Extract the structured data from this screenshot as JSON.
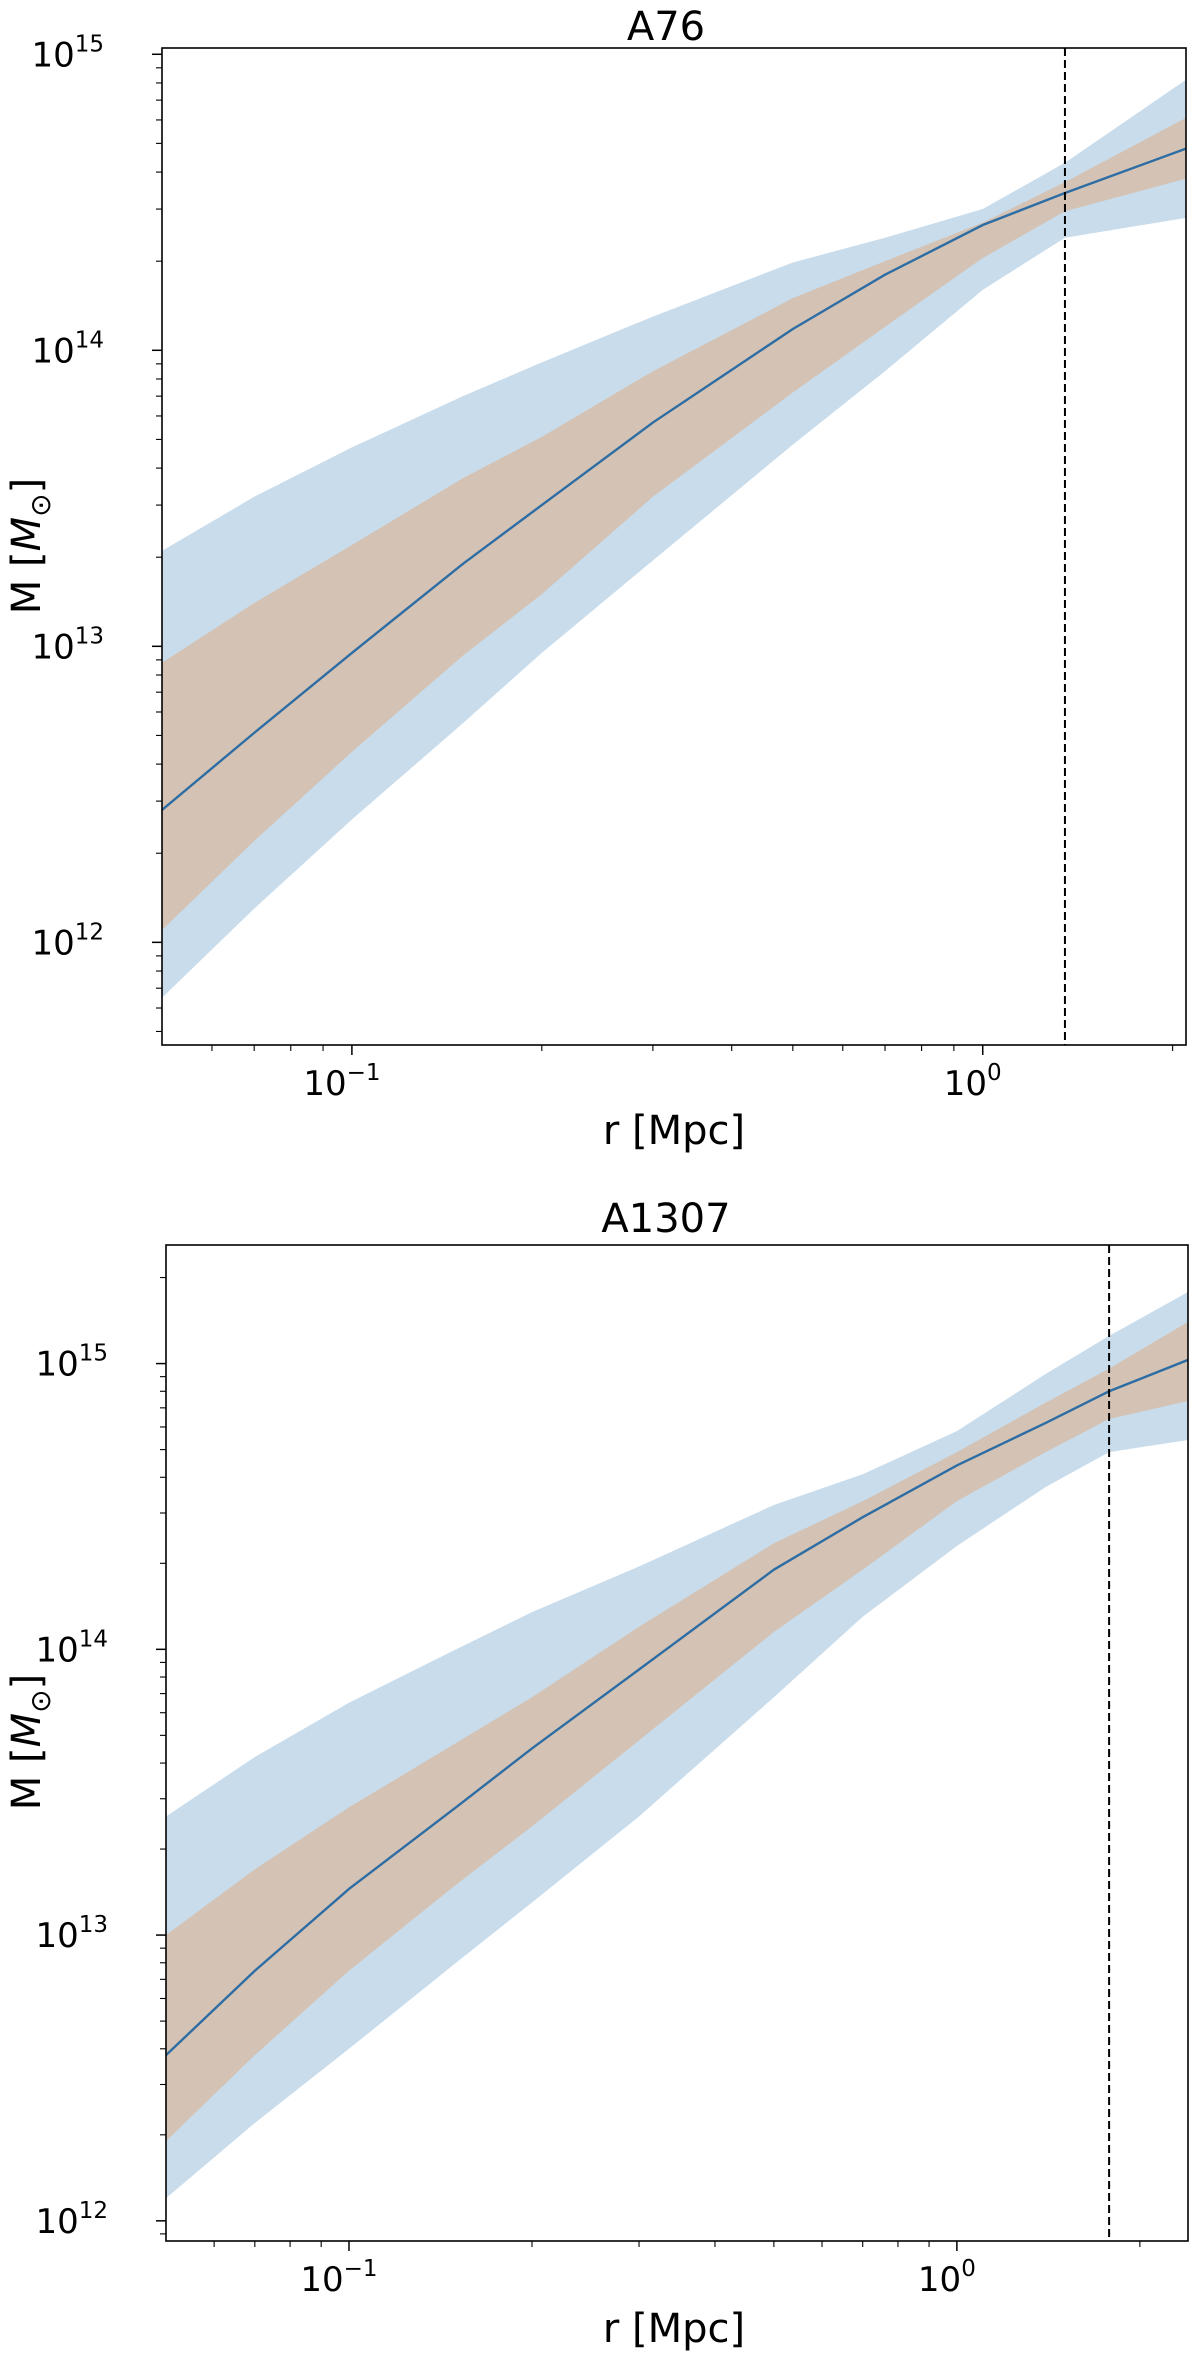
{
  "chart_data": [
    {
      "type": "line",
      "title": "A76",
      "xlabel": "r [Mpc]",
      "ylabel_main": "M [",
      "ylabel_symbol": "M",
      "ylabel_sub": "⊙",
      "ylabel_end": "]",
      "xscale": "log",
      "yscale": "log",
      "xlim": [
        0.05,
        2.1
      ],
      "ylim": [
        450000000000.0,
        1050000000000000.0
      ],
      "xticks": [
        {
          "value": 0.1,
          "label": "10",
          "exp": "−1"
        },
        {
          "value": 1.0,
          "label": "10",
          "exp": "0"
        }
      ],
      "yticks": [
        {
          "value": 1000000000000.0,
          "label": "10",
          "exp": "12"
        },
        {
          "value": 10000000000000.0,
          "label": "10",
          "exp": "13"
        },
        {
          "value": 100000000000000.0,
          "label": "10",
          "exp": "14"
        },
        {
          "value": 1000000000000000.0,
          "label": "10",
          "exp": "15"
        }
      ],
      "vline_x": 1.35,
      "series": [
        {
          "x": [
            0.05,
            0.07,
            0.1,
            0.15,
            0.2,
            0.3,
            0.5,
            0.7,
            1.0,
            1.35,
            2.1
          ],
          "y": [
            2800000000000.0,
            5100000000000.0,
            9500000000000.0,
            19000000000000.0,
            30000000000000.0,
            57000000000000.0,
            118000000000000.0,
            180000000000000.0,
            265000000000000.0,
            340000000000000.0,
            480000000000000.0
          ]
        }
      ],
      "bands": [
        {
          "x": [
            0.05,
            0.07,
            0.1,
            0.15,
            0.2,
            0.3,
            0.5,
            0.7,
            1.0,
            1.35,
            2.1
          ],
          "lower": [
            650000000000.0,
            1300000000000.0,
            2600000000000.0,
            5500000000000.0,
            9500000000000.0,
            19500000000000.0,
            48000000000000.0,
            85000000000000.0,
            160000000000000.0,
            240000000000000.0,
            280000000000000.0
          ],
          "upper": [
            21000000000000.0,
            32000000000000.0,
            47000000000000.0,
            70000000000000.0,
            91000000000000.0,
            130000000000000.0,
            198000000000000.0,
            240000000000000.0,
            300000000000000.0,
            430000000000000.0,
            820000000000000.0
          ]
        },
        {
          "x": [
            0.05,
            0.07,
            0.1,
            0.15,
            0.2,
            0.3,
            0.5,
            0.7,
            1.0,
            1.35,
            2.1
          ],
          "lower": [
            1100000000000.0,
            2200000000000.0,
            4400000000000.0,
            9300000000000.0,
            15000000000000.0,
            32000000000000.0,
            72000000000000.0,
            120000000000000.0,
            205000000000000.0,
            295000000000000.0,
            380000000000000.0
          ],
          "upper": [
            8800000000000.0,
            14000000000000.0,
            22000000000000.0,
            37000000000000.0,
            51000000000000.0,
            85000000000000.0,
            150000000000000.0,
            200000000000000.0,
            270000000000000.0,
            370000000000000.0,
            610000000000000.0
          ]
        }
      ]
    },
    {
      "type": "line",
      "title": "A1307",
      "xlabel": "r [Mpc]",
      "ylabel_main": "M [",
      "ylabel_symbol": "M",
      "ylabel_sub": "⊙",
      "ylabel_end": "]",
      "xscale": "log",
      "yscale": "log",
      "xlim": [
        0.05,
        2.4
      ],
      "ylim": [
        850000000000.0,
        2600000000000000.0
      ],
      "xticks": [
        {
          "value": 0.1,
          "label": "10",
          "exp": "−1"
        },
        {
          "value": 1.0,
          "label": "10",
          "exp": "0"
        }
      ],
      "yticks": [
        {
          "value": 1000000000000.0,
          "label": "10",
          "exp": "12"
        },
        {
          "value": 10000000000000.0,
          "label": "10",
          "exp": "13"
        },
        {
          "value": 100000000000000.0,
          "label": "10",
          "exp": "14"
        },
        {
          "value": 1000000000000000.0,
          "label": "10",
          "exp": "15"
        }
      ],
      "vline_x": 1.78,
      "series": [
        {
          "x": [
            0.05,
            0.07,
            0.1,
            0.15,
            0.2,
            0.3,
            0.5,
            0.7,
            1.0,
            1.4,
            1.78,
            2.4
          ],
          "y": [
            3800000000000.0,
            7500000000000.0,
            14500000000000.0,
            28000000000000.0,
            45000000000000.0,
            85000000000000.0,
            190000000000000.0,
            290000000000000.0,
            440000000000000.0,
            620000000000000.0,
            800000000000000.0,
            1030000000000000.0
          ]
        }
      ],
      "bands": [
        {
          "x": [
            0.05,
            0.07,
            0.1,
            0.15,
            0.2,
            0.3,
            0.5,
            0.7,
            1.0,
            1.4,
            1.78,
            2.4
          ],
          "lower": [
            1200000000000.0,
            2200000000000.0,
            4000000000000.0,
            8000000000000.0,
            13000000000000.0,
            26000000000000.0,
            68000000000000.0,
            130000000000000.0,
            230000000000000.0,
            370000000000000.0,
            490000000000000.0,
            540000000000000.0
          ],
          "upper": [
            26000000000000.0,
            42000000000000.0,
            65000000000000.0,
            100000000000000.0,
            135000000000000.0,
            195000000000000.0,
            320000000000000.0,
            410000000000000.0,
            580000000000000.0,
            920000000000000.0,
            1250000000000000.0,
            1780000000000000.0
          ]
        },
        {
          "x": [
            0.05,
            0.07,
            0.1,
            0.15,
            0.2,
            0.3,
            0.5,
            0.7,
            1.0,
            1.4,
            1.78,
            2.4
          ],
          "lower": [
            1900000000000.0,
            3800000000000.0,
            7500000000000.0,
            15000000000000.0,
            24000000000000.0,
            48000000000000.0,
            115000000000000.0,
            190000000000000.0,
            330000000000000.0,
            490000000000000.0,
            640000000000000.0,
            740000000000000.0
          ],
          "upper": [
            10000000000000.0,
            17000000000000.0,
            28000000000000.0,
            47000000000000.0,
            68000000000000.0,
            120000000000000.0,
            235000000000000.0,
            330000000000000.0,
            490000000000000.0,
            730000000000000.0,
            960000000000000.0,
            1400000000000000.0
          ]
        }
      ]
    }
  ],
  "colors": {
    "outer_band": "#c8dcec",
    "inner_band": "#d4c3b4",
    "line": "#2e6da4"
  }
}
